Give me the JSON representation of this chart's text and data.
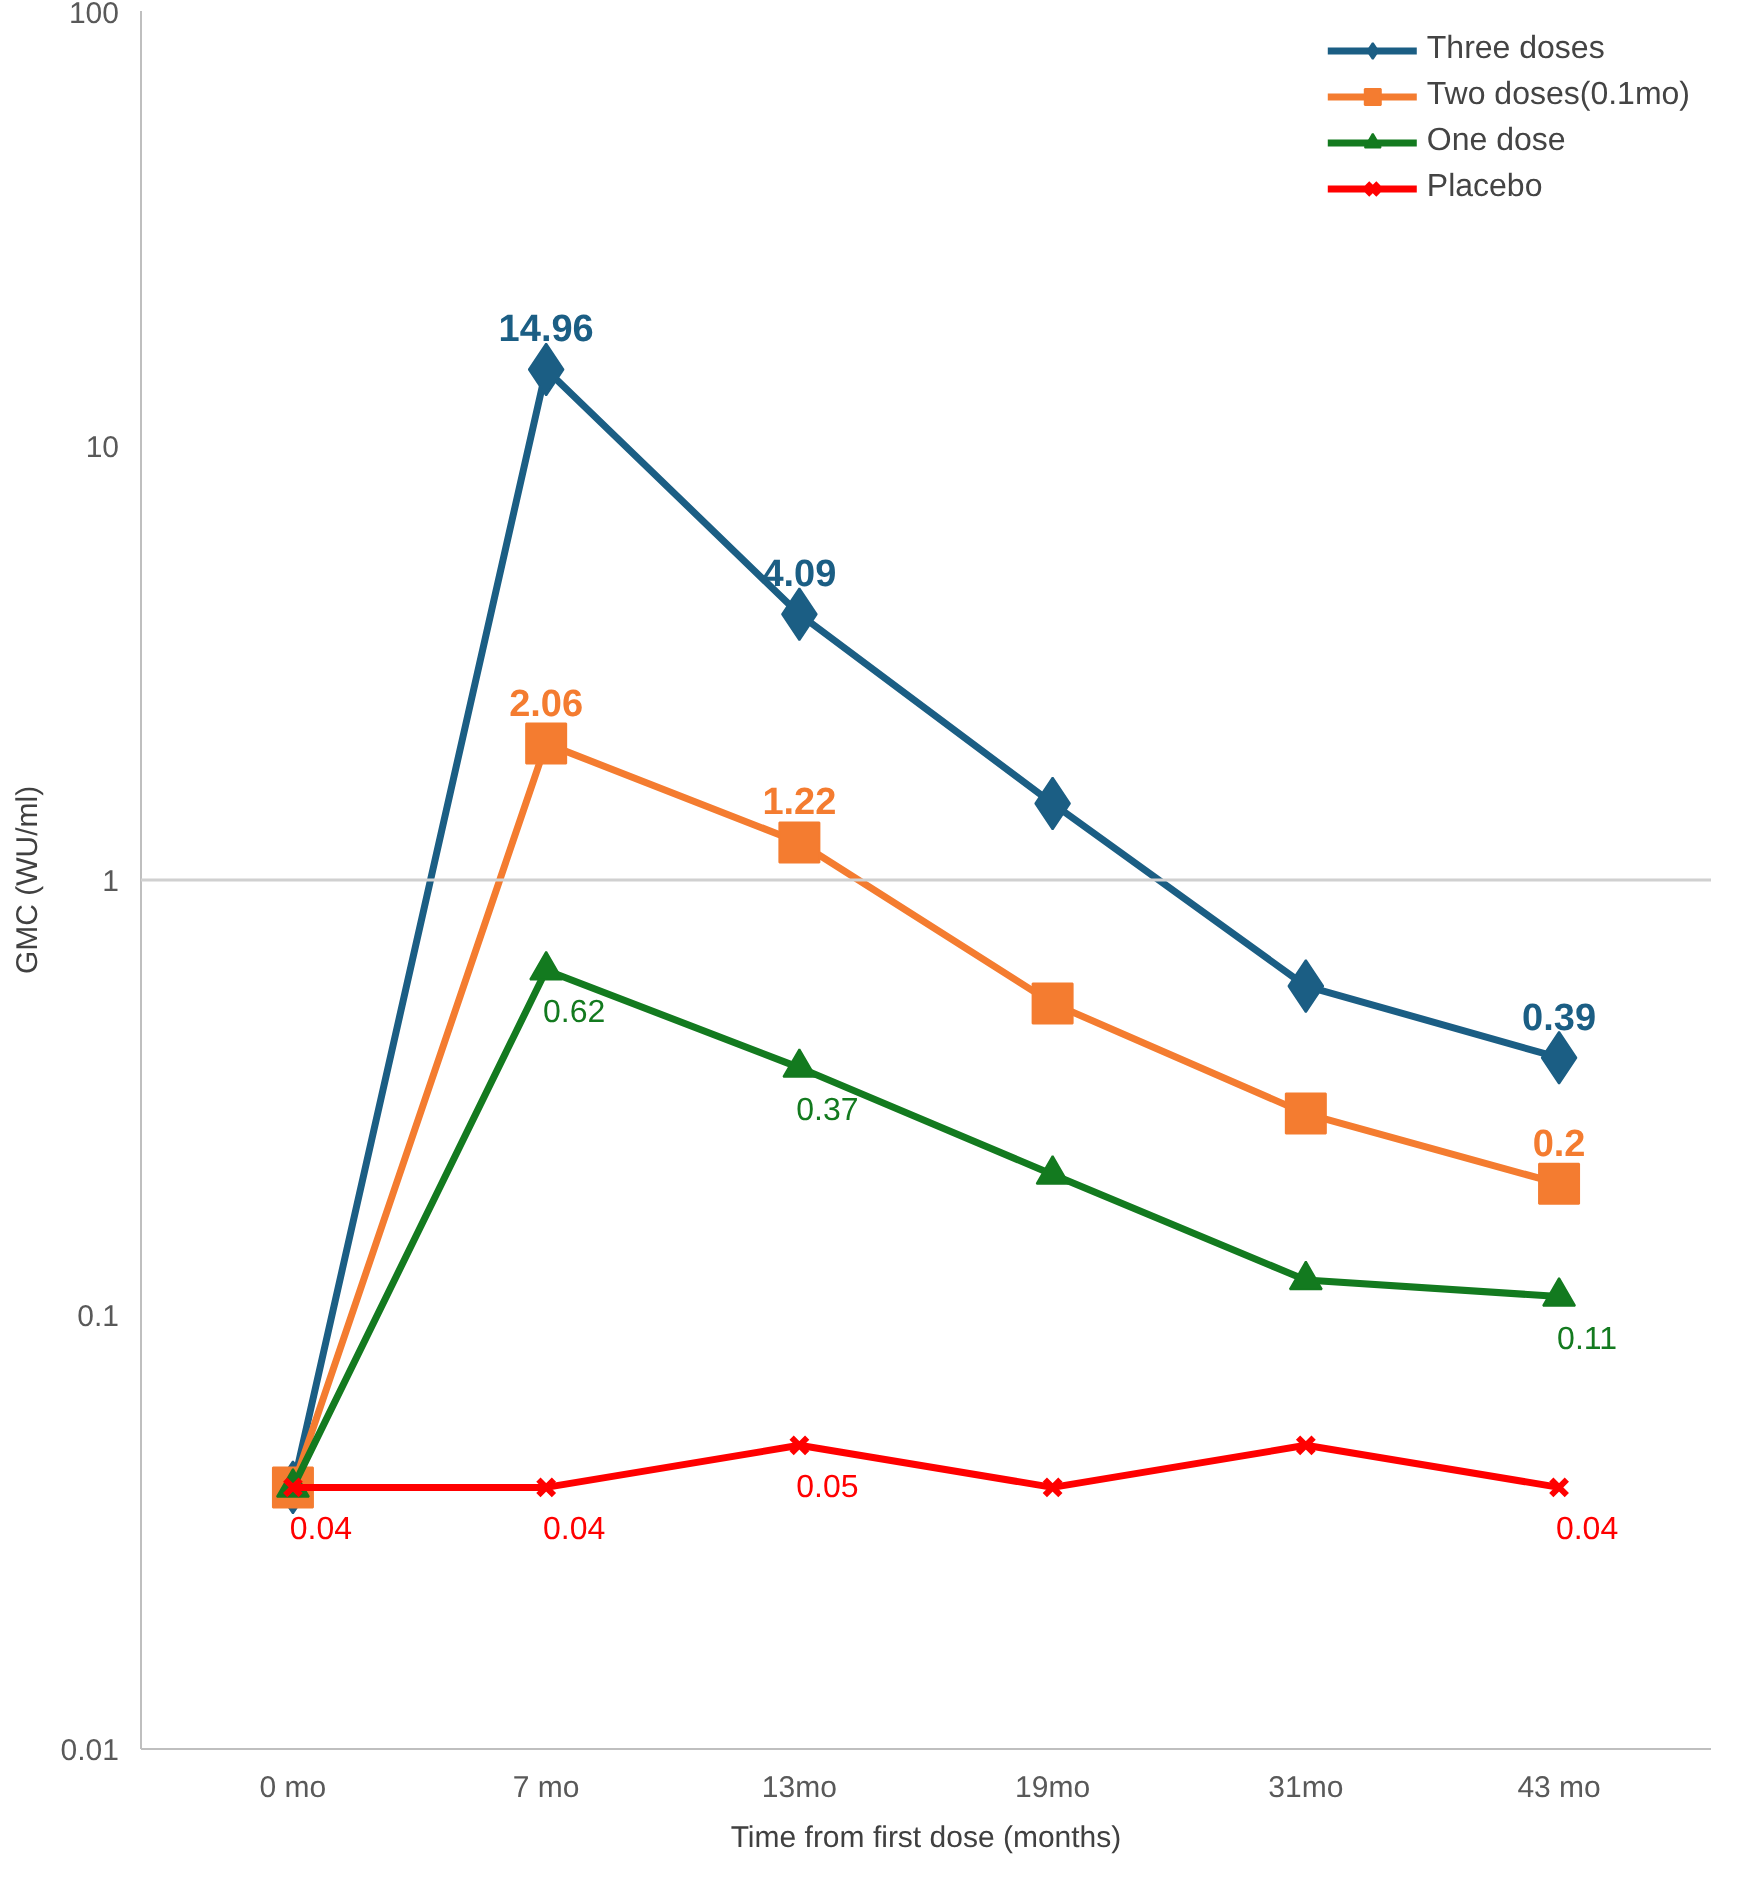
{
  "chart_data": {
    "type": "line",
    "xlabel": "Time from first dose (months)",
    "ylabel": "GMC (WU/ml)",
    "categories": [
      "0 mo",
      "7 mo",
      "13mo",
      "19mo",
      "31mo",
      "43 mo"
    ],
    "log": "y",
    "ylim": [
      0.01,
      100
    ],
    "yticks": [
      0.01,
      0.1,
      1,
      10,
      100
    ],
    "legend": "top right",
    "ref_lines": [
      {
        "axis": "y",
        "value": 1,
        "color": "#d0d0d0"
      }
    ],
    "series": [
      {
        "name": "Three doses",
        "color": "#1b5e84",
        "marker": "diamond",
        "values": [
          0.04,
          14.96,
          4.09,
          1.5,
          0.57,
          0.39
        ],
        "value_labels": [
          null,
          "14.96",
          "4.09",
          null,
          null,
          "0.39"
        ]
      },
      {
        "name": "Two doses(0.1mo)",
        "color": "#f47c30",
        "marker": "square",
        "values": [
          0.04,
          2.06,
          1.22,
          0.52,
          0.29,
          0.2
        ],
        "value_labels": [
          null,
          "2.06",
          "1.22",
          null,
          null,
          "0.2"
        ]
      },
      {
        "name": "One dose",
        "color": "#137a1f",
        "marker": "triangle",
        "values": [
          0.04,
          0.62,
          0.37,
          0.21,
          0.12,
          0.11
        ],
        "value_labels": [
          null,
          "0.62",
          "0.37",
          null,
          null,
          "0.11"
        ]
      },
      {
        "name": "Placebo",
        "color": "#ff0000",
        "marker": "cross",
        "values": [
          0.04,
          0.04,
          0.05,
          0.04,
          0.05,
          0.04
        ],
        "value_labels": [
          "0.04",
          "0.04",
          "0.05",
          null,
          null,
          "0.04"
        ]
      }
    ]
  }
}
